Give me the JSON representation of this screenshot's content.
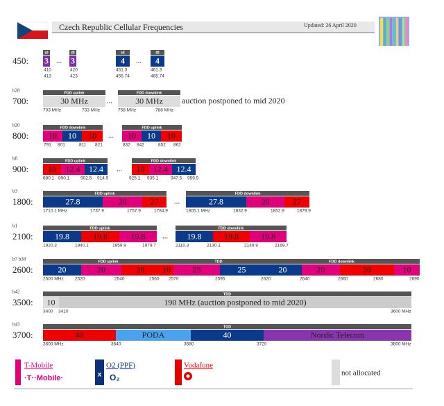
{
  "header": {
    "title": "Czech Republic Cellular Frequencies",
    "updated": "Updated: 26 April 2020"
  },
  "ellipsis": "...",
  "rows": [
    {
      "band": "450:",
      "headers": [
        "ul",
        "dl",
        "ul",
        "dl"
      ],
      "blocks": [
        {
          "label": "3",
          "color": "#7b2fa8"
        },
        {
          "label": "3",
          "color": "#7b2fa8"
        },
        {
          "label": "4",
          "color": "#0b3a8a"
        },
        {
          "label": "4",
          "color": "#0b3a8a"
        }
      ],
      "ticks": [
        "410",
        "413",
        "420",
        "423",
        "451.3",
        "455.74",
        "461.3",
        "465.74"
      ]
    },
    {
      "band": "700:",
      "tag": "b28",
      "headers": [
        "FDD uplink",
        "FDD downlink"
      ],
      "blocks": [
        {
          "label": "30 MHz",
          "color": "#dddddd"
        },
        {
          "label": "30 MHz",
          "color": "#dddddd"
        }
      ],
      "ticks": [
        "703 MHz",
        "733 MHz",
        "758 MHz",
        "788 MHz"
      ],
      "note": "auction postponed to mid 2020"
    },
    {
      "band": "800:",
      "tag": "b20",
      "headers": [
        "FDD downlink",
        "FDD uplink"
      ],
      "blocks": [
        {
          "label": "10",
          "color": "#e2007a"
        },
        {
          "label": "10",
          "color": "#0b3a8a"
        },
        {
          "label": "10",
          "color": "#f00000"
        },
        {
          "label": "10",
          "color": "#e2007a"
        },
        {
          "label": "10",
          "color": "#0b3a8a"
        },
        {
          "label": "10",
          "color": "#f00000"
        }
      ],
      "ticks": [
        "791",
        "801",
        "811",
        "821",
        "832",
        "842",
        "852",
        "862"
      ]
    },
    {
      "band": "900:",
      "tag": "b8",
      "headers": [
        "FDD uplink",
        "FDD downlink"
      ],
      "blocks": [
        {
          "label": "10",
          "color": "#f00000"
        },
        {
          "label": "12.4",
          "color": "#e2007a"
        },
        {
          "label": "12.4",
          "color": "#0b3a8a"
        },
        {
          "label": "10",
          "color": "#f00000"
        },
        {
          "label": "12.4",
          "color": "#e2007a"
        },
        {
          "label": "12.4",
          "color": "#0b3a8a"
        }
      ],
      "ticks": [
        "880.1",
        "890.1",
        "902.5",
        "914.9",
        "925.1",
        "935.1",
        "947.5",
        "959.9"
      ]
    },
    {
      "band": "1800:",
      "tag": "b3",
      "headers": [
        "FDD uplink",
        "FDD downlink"
      ],
      "blocks": [
        {
          "label": "27.8",
          "color": "#0b3a8a"
        },
        {
          "label": "20",
          "color": "#e2007a"
        },
        {
          "label": "27",
          "color": "#f00000"
        },
        {
          "label": "27.8",
          "color": "#0b3a8a"
        },
        {
          "label": "20",
          "color": "#e2007a"
        },
        {
          "label": "27",
          "color": "#f00000"
        }
      ],
      "ticks": [
        "1710.1 MHz",
        "1737.9",
        "1757.9",
        "1784.9",
        "1805.1 MHz",
        "1832.9",
        "1852.9",
        "1879.9"
      ]
    },
    {
      "band": "2100:",
      "tag": "b1",
      "headers": [
        "FDD uplink",
        "FDD downlink"
      ],
      "blocks": [
        {
          "label": "19.8",
          "color": "#0b3a8a"
        },
        {
          "label": "19.8",
          "color": "#f00000"
        },
        {
          "label": "19.8",
          "color": "#e2007a"
        },
        {
          "label": "19.8",
          "color": "#0b3a8a"
        },
        {
          "label": "19.8",
          "color": "#f00000"
        },
        {
          "label": "19.8",
          "color": "#e2007a"
        }
      ],
      "ticks": [
        "1920.3",
        "1940.1",
        "1959.9",
        "1979.7",
        "2110.3",
        "2130.1",
        "2149.9",
        "2169.7"
      ]
    },
    {
      "band": "2600:",
      "tag": "b7 b38",
      "headers": [
        "FDD uplink",
        "TDD",
        "FDD downlink"
      ],
      "blocks": [
        {
          "label": "20",
          "color": "#0b3a8a"
        },
        {
          "label": "20",
          "color": "#e2007a"
        },
        {
          "label": "20",
          "color": "#f00000"
        },
        {
          "label": "10",
          "color": "#f00000"
        },
        {
          "label": "25",
          "color": "#e2007a"
        },
        {
          "label": "25",
          "color": "#0b3a8a"
        },
        {
          "label": "20",
          "color": "#0b3a8a"
        },
        {
          "label": "20",
          "color": "#e2007a"
        },
        {
          "label": "20",
          "color": "#f00000"
        },
        {
          "label": "10",
          "color": "#e2007a"
        }
      ],
      "ticks": [
        "2500 MHz",
        "2520",
        "2540",
        "2560",
        "2570",
        "2595",
        "2620",
        "2640",
        "2660",
        "2680",
        "2690"
      ]
    },
    {
      "band": "3500:",
      "tag": "b42",
      "headers": [
        "TDD"
      ],
      "blocks": [
        {
          "label": "10",
          "color": "#dddddd"
        },
        {
          "label": "190 MHz (auction postponed to mid 2020)",
          "color": "#cccccc"
        }
      ],
      "ticks": [
        "3400",
        "3410",
        "3600 MHz"
      ]
    },
    {
      "band": "3700:",
      "tag": "b43",
      "headers": [
        "TDD"
      ],
      "blocks": [
        {
          "label": "40",
          "color": "#f00000"
        },
        {
          "label": "PODA",
          "color": "#4aa3ef"
        },
        {
          "label": "40",
          "color": "#0b3a8a"
        },
        {
          "label": "Nordic Telecom",
          "color": "#8b34b0"
        }
      ],
      "ticks": [
        "3600 MHz",
        "3640",
        "3680",
        "3720",
        "3800 MHz"
      ]
    }
  ],
  "legend": [
    {
      "name": "T-Mobile",
      "logo": "·T··Mobile·",
      "color": "#e2007a"
    },
    {
      "name": "O2 (PPF)",
      "mark": "x",
      "logo": "O₂",
      "color": "#0b3279"
    },
    {
      "name": "Vodafone",
      "color": "#e60000"
    },
    {
      "name": "not allocated",
      "color": "#dddddd"
    }
  ]
}
